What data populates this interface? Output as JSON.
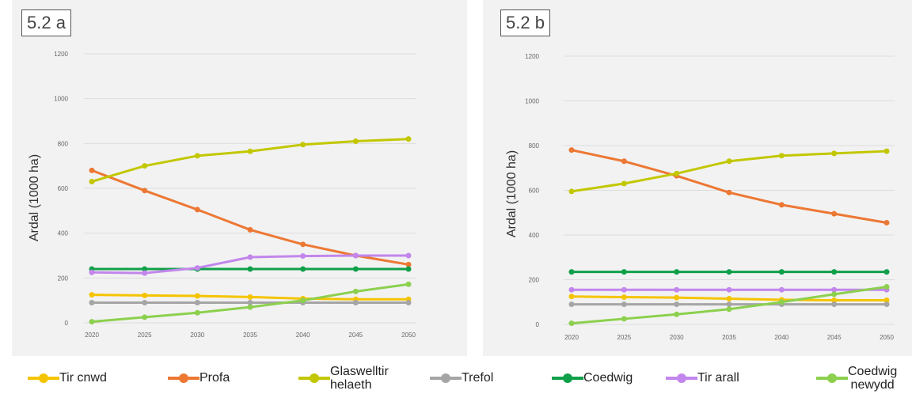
{
  "panels": [
    {
      "label": "5.2 a"
    },
    {
      "label": "5.2 b"
    }
  ],
  "legend": [
    {
      "name": "Tir cnwd",
      "color": "#f5c400"
    },
    {
      "name": "Profa",
      "color": "#ec7834"
    },
    {
      "name": "Glaswelltir\nhelaeth",
      "color": "#c2c700"
    },
    {
      "name": "Trefol",
      "color": "#a5a5a5"
    },
    {
      "name": "Coedwig",
      "color": "#10a04a"
    },
    {
      "name": "Tir arall",
      "color": "#c286ec"
    },
    {
      "name": "Coedwig\nnewydd",
      "color": "#8cd04e"
    }
  ],
  "chart_data": [
    {
      "type": "line",
      "ylabel": "Ardal (1000 ha)",
      "ylim": [
        0,
        1200
      ],
      "yticks": [
        0,
        200,
        400,
        600,
        800,
        1000,
        1200
      ],
      "x": [
        2020,
        2025,
        2030,
        2035,
        2040,
        2045,
        2050
      ],
      "grid": true,
      "series": [
        {
          "name": "Tir cnwd",
          "color": "#f5c400",
          "values": [
            125,
            122,
            120,
            115,
            108,
            105,
            105
          ]
        },
        {
          "name": "Profa",
          "color": "#ec7834",
          "values": [
            680,
            590,
            505,
            415,
            350,
            300,
            260
          ]
        },
        {
          "name": "Glaswelltir helaeth",
          "color": "#c2c700",
          "values": [
            630,
            700,
            745,
            765,
            795,
            810,
            820
          ]
        },
        {
          "name": "Trefol",
          "color": "#a5a5a5",
          "values": [
            90,
            90,
            90,
            90,
            90,
            90,
            90
          ]
        },
        {
          "name": "Coedwig",
          "color": "#10a04a",
          "values": [
            240,
            240,
            240,
            240,
            240,
            240,
            240
          ]
        },
        {
          "name": "Tir arall",
          "color": "#c286ec",
          "values": [
            225,
            222,
            245,
            293,
            298,
            300,
            300
          ]
        },
        {
          "name": "Coedwig newydd",
          "color": "#8cd04e",
          "values": [
            5,
            25,
            45,
            70,
            100,
            140,
            172
          ]
        }
      ]
    },
    {
      "type": "line",
      "ylabel": "Ardal (1000 ha)",
      "ylim": [
        0,
        1200
      ],
      "yticks": [
        0,
        200,
        400,
        600,
        800,
        1000,
        1200
      ],
      "x": [
        2020,
        2025,
        2030,
        2035,
        2040,
        2045,
        2050
      ],
      "grid": true,
      "series": [
        {
          "name": "Tir cnwd",
          "color": "#f5c400",
          "values": [
            125,
            122,
            120,
            115,
            110,
            108,
            108
          ]
        },
        {
          "name": "Profa",
          "color": "#ec7834",
          "values": [
            780,
            730,
            665,
            590,
            535,
            495,
            455
          ]
        },
        {
          "name": "Glaswelltir helaeth",
          "color": "#c2c700",
          "values": [
            595,
            630,
            675,
            730,
            755,
            765,
            775
          ]
        },
        {
          "name": "Trefol",
          "color": "#a5a5a5",
          "values": [
            90,
            90,
            90,
            90,
            90,
            90,
            90
          ]
        },
        {
          "name": "Coedwig",
          "color": "#10a04a",
          "values": [
            235,
            235,
            235,
            235,
            235,
            235,
            235
          ]
        },
        {
          "name": "Tir arall",
          "color": "#c286ec",
          "values": [
            155,
            155,
            155,
            155,
            155,
            155,
            155
          ]
        },
        {
          "name": "Coedwig newydd",
          "color": "#8cd04e",
          "values": [
            5,
            25,
            45,
            68,
            100,
            135,
            168
          ]
        }
      ]
    }
  ]
}
